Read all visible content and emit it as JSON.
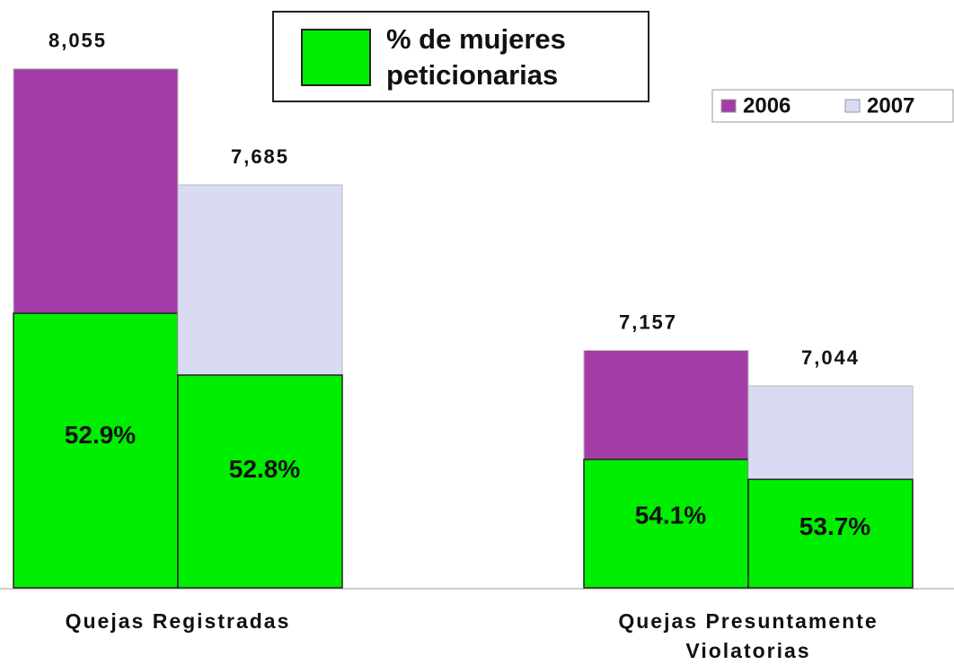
{
  "chart_data": {
    "type": "bar",
    "categories": [
      "Quejas Registradas",
      "Quejas Presuntamente Violatorias"
    ],
    "series": [
      {
        "name": "2006",
        "color": "#a43ca8",
        "values": [
          8055,
          7157
        ],
        "value_labels": [
          "8,055",
          "7,157"
        ],
        "women_pct": [
          52.9,
          54.1
        ],
        "women_pct_labels": [
          "52.9%",
          "54.1%"
        ]
      },
      {
        "name": "2007",
        "color": "#d9dbf3",
        "values": [
          7685,
          7044
        ],
        "value_labels": [
          "7,685",
          "7,044"
        ],
        "women_pct": [
          52.8,
          53.7
        ],
        "women_pct_labels": [
          "52.8%",
          "53.7%"
        ]
      }
    ],
    "overlay": {
      "name": "% de mujeres peticionarias",
      "color": "#00ee00"
    },
    "ylim": [
      6400,
      8100
    ]
  }
}
